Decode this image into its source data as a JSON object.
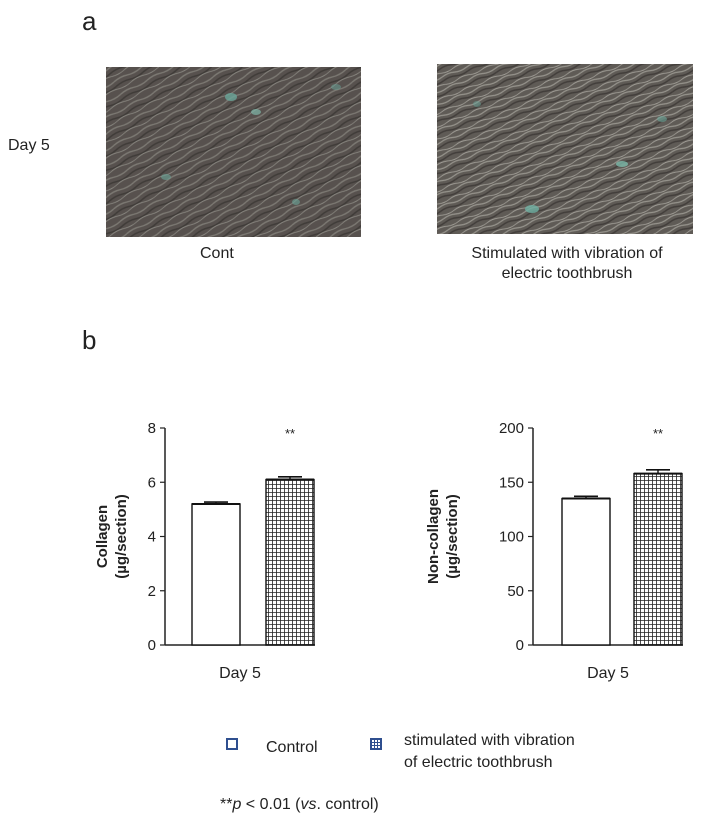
{
  "panel_a": {
    "letter": "a",
    "row_label": "Day 5",
    "caption_left": "Cont",
    "caption_right_line1": "Stimulated with vibration of",
    "caption_right_line2": "electric toothbrush"
  },
  "panel_b": {
    "letter": "b",
    "legend": {
      "control": "Control",
      "stim_line1": "stimulated with vibration",
      "stim_line2": "of electric toothbrush"
    },
    "footnote": {
      "stars": "**",
      "p": "p",
      "rest1": " < 0.01 (",
      "vs": "vs",
      "rest2": ". control)"
    },
    "colors": {
      "legend_control": "#2f4f8f",
      "legend_stim": "#2f4f8f",
      "bar_edge": "#111111"
    }
  },
  "chart_data": [
    {
      "type": "bar",
      "categories": [
        "Day 5"
      ],
      "ylabel_line1": "Collagen",
      "ylabel_line2": "(µg/section)",
      "ylim": [
        0,
        8
      ],
      "yticks": [
        "0",
        "2",
        "4",
        "6",
        "8"
      ],
      "series": [
        {
          "values": [
            5.2
          ],
          "error": [
            0.07
          ],
          "pattern": "none"
        },
        {
          "values": [
            6.1
          ],
          "error": [
            0.1
          ],
          "pattern": "grid"
        }
      ],
      "annotation": "**"
    },
    {
      "type": "bar",
      "categories": [
        "Day 5"
      ],
      "ylabel_line1": "Non-collagen",
      "ylabel_line2": "(µg/section)",
      "ylim": [
        0,
        200
      ],
      "yticks": [
        "0",
        "50",
        "100",
        "150",
        "200"
      ],
      "series": [
        {
          "values": [
            135
          ],
          "error": [
            2
          ],
          "pattern": "none"
        },
        {
          "values": [
            158
          ],
          "error": [
            3.5
          ],
          "pattern": "grid"
        }
      ],
      "annotation": "**"
    }
  ]
}
